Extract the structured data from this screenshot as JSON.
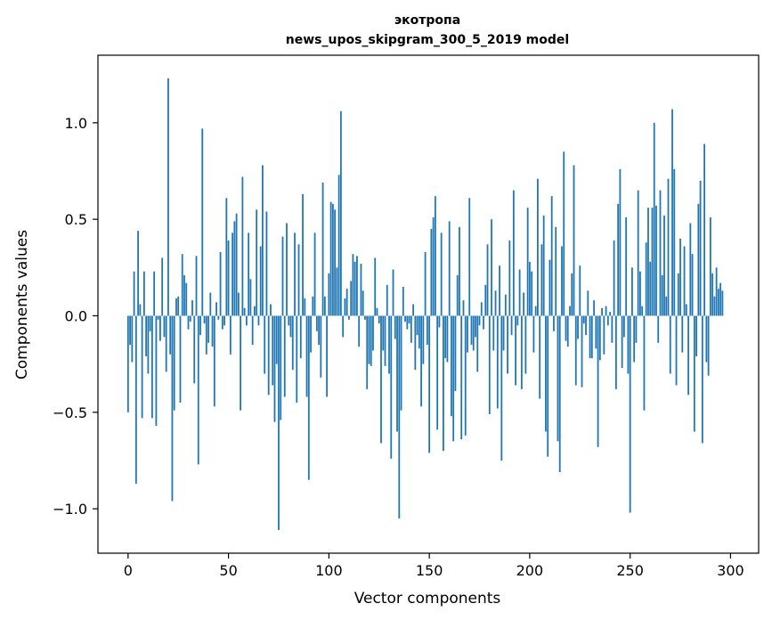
{
  "chart_data": {
    "type": "bar",
    "title": "экотропа",
    "subtitle": "news_upos_skipgram_300_5_2019 model",
    "xlabel": "Vector components",
    "ylabel": "Components values",
    "xlim": [
      -15,
      314
    ],
    "ylim": [
      -1.23,
      1.35
    ],
    "xticks": [
      0,
      50,
      100,
      150,
      200,
      250,
      300
    ],
    "yticks": [
      -1.0,
      -0.5,
      0.0,
      0.5,
      1.0
    ],
    "ytick_labels": [
      "−1.0",
      "−0.5",
      "0.0",
      "0.5",
      "1.0"
    ],
    "grid": false,
    "bar_color": "#1f77b4",
    "values": [
      -0.5,
      -0.15,
      -0.24,
      0.23,
      -0.87,
      0.44,
      0.06,
      -0.53,
      0.23,
      -0.21,
      -0.3,
      -0.08,
      -0.53,
      0.23,
      -0.57,
      -0.02,
      -0.13,
      0.3,
      -0.11,
      -0.29,
      1.23,
      -0.2,
      -0.96,
      -0.49,
      0.09,
      0.1,
      -0.45,
      0.32,
      0.21,
      0.17,
      -0.07,
      -0.03,
      0.08,
      -0.35,
      0.31,
      -0.77,
      -0.1,
      0.97,
      -0.04,
      -0.2,
      -0.14,
      0.12,
      -0.16,
      -0.47,
      0.07,
      -0.02,
      0.33,
      -0.07,
      -0.05,
      0.61,
      0.39,
      -0.2,
      0.43,
      0.49,
      0.53,
      0.12,
      -0.49,
      0.72,
      0.04,
      -0.05,
      0.43,
      0.19,
      -0.15,
      0.05,
      0.55,
      -0.05,
      0.36,
      0.78,
      -0.3,
      0.54,
      -0.41,
      0.06,
      -0.36,
      -0.55,
      -0.25,
      -1.11,
      -0.54,
      0.41,
      -0.42,
      0.48,
      -0.05,
      -0.11,
      -0.28,
      0.43,
      -0.45,
      0.37,
      -0.22,
      0.63,
      0.09,
      -0.42,
      -0.85,
      -0.19,
      0.1,
      0.43,
      -0.08,
      -0.15,
      -0.32,
      0.69,
      0.1,
      -0.42,
      0.22,
      0.59,
      0.58,
      0.55,
      0.25,
      0.73,
      1.06,
      -0.11,
      0.09,
      0.14,
      -0.02,
      0.18,
      0.32,
      0.28,
      0.31,
      -0.16,
      0.27,
      0.13,
      -0.02,
      -0.38,
      -0.25,
      -0.26,
      -0.18,
      0.3,
      0.04,
      -0.04,
      -0.66,
      -0.18,
      -0.26,
      0.16,
      -0.3,
      -0.74,
      0.24,
      -0.12,
      -0.6,
      -1.05,
      -0.49,
      0.15,
      -0.03,
      -0.07,
      -0.04,
      -0.14,
      0.06,
      -0.28,
      -0.1,
      -0.17,
      -0.47,
      -0.25,
      0.33,
      -0.15,
      -0.71,
      0.45,
      0.51,
      0.62,
      -0.59,
      -0.06,
      0.43,
      -0.7,
      -0.22,
      -0.24,
      0.49,
      -0.52,
      -0.65,
      -0.39,
      0.21,
      0.46,
      -0.64,
      0.08,
      -0.62,
      -0.19,
      0.61,
      -0.15,
      -0.18,
      -0.11,
      -0.29,
      -0.05,
      0.07,
      -0.07,
      0.16,
      0.37,
      -0.51,
      0.5,
      -0.18,
      0.13,
      -0.48,
      0.26,
      -0.75,
      -0.18,
      0.11,
      -0.3,
      0.39,
      -0.1,
      0.65,
      -0.36,
      -0.05,
      0.24,
      -0.38,
      0.12,
      -0.3,
      0.56,
      0.28,
      0.23,
      -0.19,
      0.05,
      0.71,
      -0.43,
      0.37,
      0.52,
      -0.6,
      -0.73,
      0.29,
      0.62,
      -0.08,
      0.46,
      -0.65,
      -0.81,
      0.36,
      0.85,
      -0.13,
      -0.16,
      0.05,
      0.22,
      0.78,
      -0.36,
      -0.12,
      0.26,
      -0.37,
      -0.04,
      -0.1,
      0.13,
      -0.22,
      -0.22,
      0.08,
      -0.17,
      -0.68,
      -0.23,
      0.04,
      -0.2,
      0.05,
      -0.05,
      0.02,
      -0.14,
      0.39,
      -0.38,
      0.58,
      0.76,
      -0.27,
      -0.11,
      0.51,
      -0.3,
      -1.02,
      0.25,
      -0.24,
      -0.14,
      0.65,
      0.23,
      0.05,
      -0.49,
      0.38,
      0.56,
      0.28,
      0.56,
      1.0,
      0.57,
      -0.14,
      0.65,
      0.21,
      0.52,
      0.1,
      0.71,
      -0.3,
      1.07,
      0.76,
      -0.36,
      0.22,
      0.4,
      -0.19,
      0.36,
      0.06,
      -0.41,
      0.48,
      0.32,
      -0.6,
      -0.21,
      0.58,
      0.7,
      -0.66,
      0.89,
      -0.24,
      -0.31,
      0.51,
      0.22,
      0.1,
      0.25,
      0.14,
      0.17,
      0.13
    ]
  }
}
